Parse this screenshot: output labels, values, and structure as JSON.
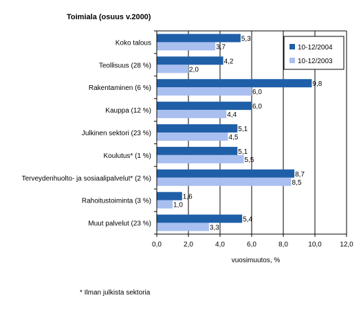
{
  "chart_data": {
    "type": "bar",
    "orientation": "horizontal",
    "title": "Toimiala (osuus v.2000)",
    "categories": [
      "Koko talous",
      "Teollisuus (28 %)",
      "Rakentaminen (6 %)",
      "Kauppa (12 %)",
      "Julkinen sektori (23 %)",
      "Koulutus* (1 %)",
      "Terveydenhuolto- ja sosiaalipalvelut* (2 %)",
      "Rahoitustoiminta (3 %)",
      "Muut palvelut (23 %)"
    ],
    "series": [
      {
        "name": "10-12/2004",
        "color": "#1f5fa8",
        "values": [
          5.3,
          4.2,
          9.8,
          6.0,
          5.1,
          5.1,
          8.7,
          1.6,
          5.4
        ],
        "labels": [
          "5,3",
          "4,2",
          "9,8",
          "6,0",
          "5,1",
          "5,1",
          "8,7",
          "1,6",
          "5,4"
        ]
      },
      {
        "name": "10-12/2003",
        "color": "#a9bff0",
        "values": [
          3.7,
          2.0,
          6.0,
          4.4,
          4.5,
          5.5,
          8.5,
          1.0,
          3.3
        ],
        "labels": [
          "3,7",
          "2,0",
          "6,0",
          "4,4",
          "4,5",
          "5,5",
          "8,5",
          "1,0",
          "3,3"
        ]
      }
    ],
    "xlim": [
      0,
      12
    ],
    "xticks": [
      0,
      2,
      4,
      6,
      8,
      10,
      12
    ],
    "xtick_labels": [
      "0,0",
      "2,0",
      "4,0",
      "6,0",
      "8,0",
      "10,0",
      "12,0"
    ],
    "xlabel": "vuosimuutos, %",
    "ylabel": "",
    "grid": "vertical",
    "legend_position": "top-right"
  },
  "footnote": "* Ilman julkista sektoria"
}
